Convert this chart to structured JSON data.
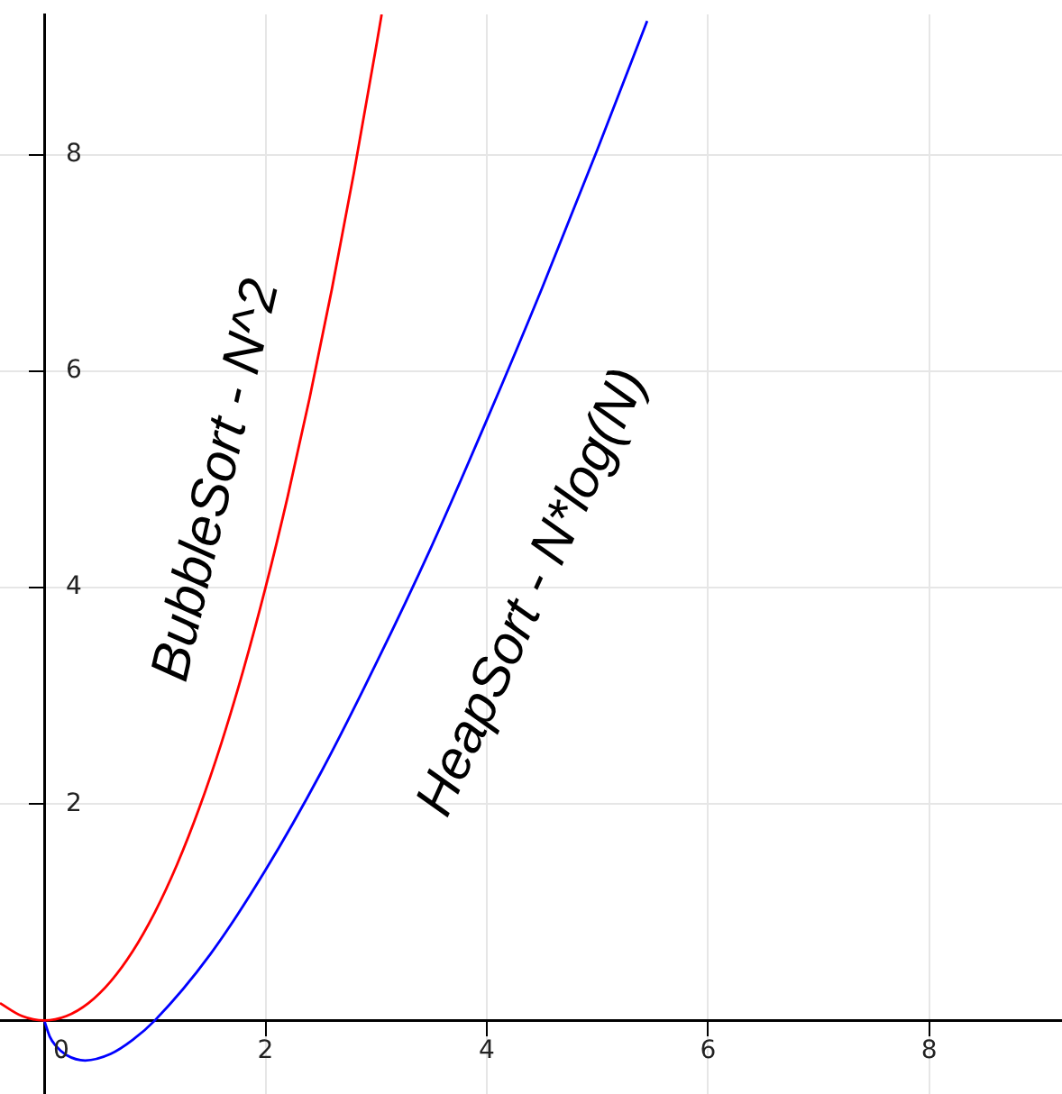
{
  "chart_data": {
    "type": "line",
    "x": [
      -0.4,
      -0.2,
      0,
      0.2,
      0.4,
      0.6,
      0.8,
      1,
      1.2,
      1.4,
      1.6,
      1.8,
      2,
      2.2,
      2.4,
      2.6,
      2.8,
      3,
      3.05
    ],
    "series": [
      {
        "name": "BubbleSort - N^2",
        "color": "#ff0000",
        "values": [
          0.16,
          0.04,
          0,
          0.04,
          0.16,
          0.36,
          0.64,
          1,
          1.44,
          1.96,
          2.56,
          3.24,
          4,
          4.84,
          5.76,
          6.76,
          7.84,
          9,
          9.3
        ]
      },
      {
        "name": "HeapSort - N*log(N)",
        "color": "#0000ff",
        "x": [
          0,
          0.05,
          0.1,
          0.2,
          0.37,
          0.6,
          0.8,
          1,
          1.5,
          2,
          2.5,
          3,
          3.5,
          4,
          4.5,
          5,
          5.45
        ],
        "values": [
          0,
          -0.15,
          -0.23,
          -0.32,
          -0.37,
          -0.31,
          -0.18,
          0,
          0.61,
          1.39,
          2.29,
          3.3,
          4.38,
          5.55,
          6.77,
          8.05,
          9.24
        ]
      }
    ],
    "xlim": [
      -0.4,
      9.2
    ],
    "ylim": [
      -0.68,
      9.3
    ],
    "xticks": [
      0,
      2,
      4,
      6,
      8
    ],
    "yticks": [
      2,
      4,
      6,
      8
    ],
    "grid": true,
    "legend": false,
    "marker": "none",
    "line_style": "solid"
  }
}
